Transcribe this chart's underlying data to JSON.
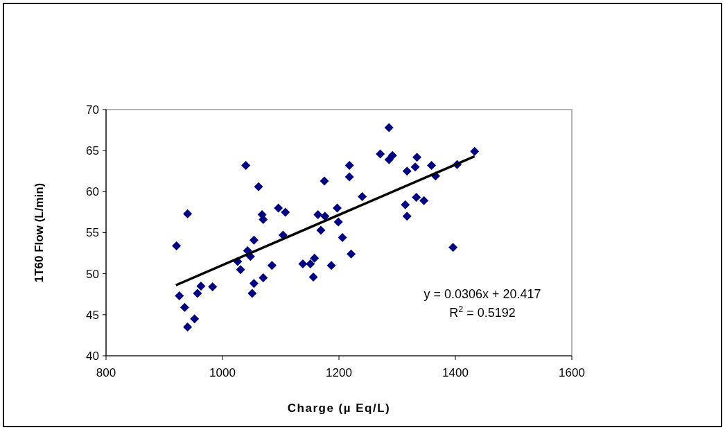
{
  "chart_data": {
    "type": "scatter",
    "xlabel": "Charge (µ Eq/L)",
    "ylabel": "1T60 Flow (L/min)",
    "xlim": [
      800,
      1600
    ],
    "xticks": [
      800,
      1000,
      1200,
      1400,
      1600
    ],
    "ylim": [
      40,
      70
    ],
    "yticks": [
      40,
      45,
      50,
      55,
      60,
      65,
      70
    ],
    "grid": false,
    "annotations": [
      "y = 0.0306x + 20.417",
      "R$^{2}$ = 0.5192"
    ],
    "series": [
      {
        "color": "#000080",
        "marker": "diamond",
        "x": [
          921,
          940,
          926,
          935,
          940,
          952,
          957,
          963,
          983,
          1026,
          1031,
          1040,
          1043,
          1048,
          1054,
          1054,
          1051,
          1062,
          1068,
          1070,
          1070,
          1085,
          1096,
          1108,
          1104,
          1138,
          1151,
          1158,
          1156,
          1175,
          1164,
          1176,
          1169,
          1187,
          1197,
          1199,
          1206,
          1221,
          1218,
          1218,
          1240,
          1271,
          1286,
          1286,
          1292,
          1317,
          1331,
          1334,
          1359,
          1366,
          1314,
          1317,
          1333,
          1346,
          1396,
          1403,
          1433
        ],
        "values": [
          53.4,
          57.3,
          47.3,
          45.9,
          43.5,
          44.5,
          47.6,
          48.5,
          48.4,
          51.5,
          50.5,
          63.2,
          52.8,
          52.1,
          54.1,
          48.8,
          47.6,
          60.6,
          57.2,
          56.6,
          49.5,
          51.0,
          58.0,
          57.5,
          54.7,
          51.2,
          51.2,
          51.9,
          49.6,
          61.3,
          57.2,
          57.0,
          55.3,
          51.0,
          58.0,
          56.3,
          54.4,
          52.4,
          63.2,
          61.8,
          59.4,
          64.6,
          67.8,
          63.9,
          64.4,
          62.5,
          63.0,
          64.2,
          63.2,
          61.9,
          58.4,
          57.0,
          59.3,
          58.9,
          53.2,
          63.3,
          64.9
        ]
      },
      {
        "type": "line",
        "color": "#000000",
        "marker": "none",
        "line_style": "solid",
        "x": [
          920,
          1433
        ],
        "values": [
          48.6,
          64.3
        ]
      }
    ]
  }
}
